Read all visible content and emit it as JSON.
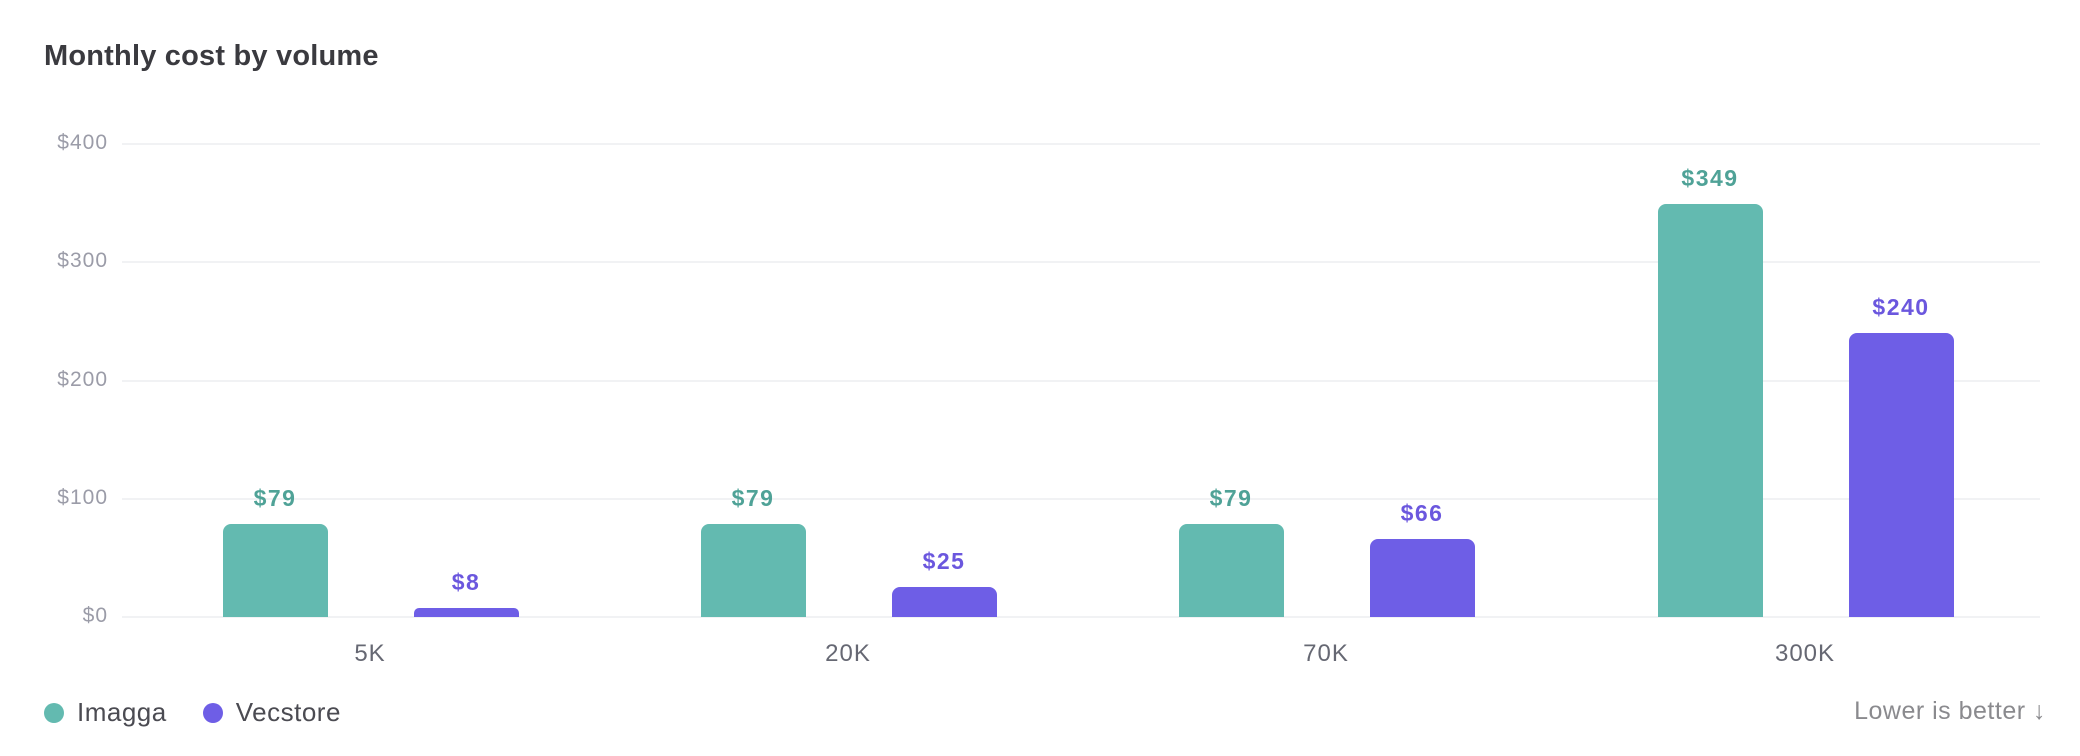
{
  "chart_data": {
    "type": "bar",
    "title": "Monthly cost by volume",
    "xlabel": "",
    "ylabel": "",
    "categories": [
      "5K",
      "20K",
      "70K",
      "300K"
    ],
    "series": [
      {
        "name": "Imagga",
        "color": "#63bab0",
        "label_color": "#4fa297",
        "values": [
          79,
          79,
          79,
          349
        ],
        "labels": [
          "$79",
          "$79",
          "$79",
          "$349"
        ]
      },
      {
        "name": "Vecstore",
        "color": "#6e5ee6",
        "label_color": "#6b57de",
        "values": [
          8,
          25,
          66,
          240
        ],
        "labels": [
          "$8",
          "$25",
          "$66",
          "$240"
        ]
      }
    ],
    "ylim": [
      0,
      400
    ],
    "yticks": [
      0,
      100,
      200,
      300,
      400
    ],
    "ytick_labels": [
      "$0",
      "$100",
      "$200",
      "$300",
      "$400"
    ],
    "grid": true,
    "legend_position": "bottom-left",
    "annotation": "Lower is better ↓"
  },
  "header": {
    "title": "Monthly cost by volume"
  },
  "legend": {
    "items": [
      {
        "label": "Imagga",
        "color": "#63bab0"
      },
      {
        "label": "Vecstore",
        "color": "#6e5ee6"
      }
    ]
  },
  "footer": {
    "note": "Lower is better ↓"
  }
}
